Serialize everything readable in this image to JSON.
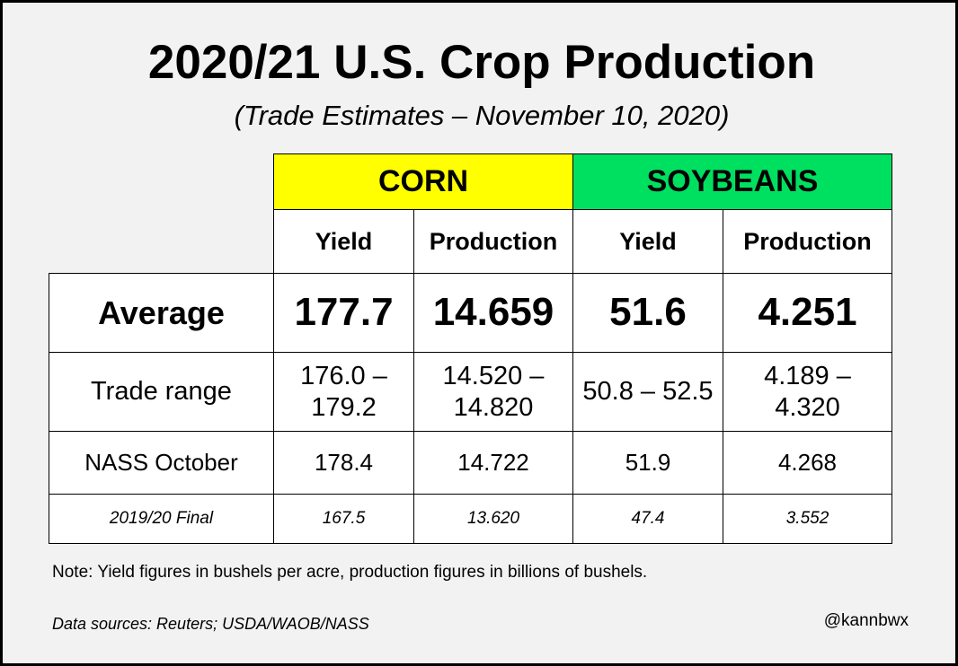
{
  "title": "2020/21 U.S. Crop Production",
  "subtitle": "(Trade Estimates – November 10, 2020)",
  "chart_data": {
    "type": "table",
    "groups": [
      {
        "name": "CORN",
        "color": "#ffff00",
        "columns": [
          "Yield",
          "Production"
        ]
      },
      {
        "name": "SOYBEANS",
        "color": "#00e060",
        "columns": [
          "Yield",
          "Production"
        ]
      }
    ],
    "rows": [
      {
        "label": "Average",
        "values": [
          "177.7",
          "14.659",
          "51.6",
          "4.251"
        ]
      },
      {
        "label": "Trade range",
        "values": [
          "176.0 – 179.2",
          "14.520 – 14.820",
          "50.8 – 52.5",
          "4.189 – 4.320"
        ]
      },
      {
        "label": "NASS October",
        "values": [
          "178.4",
          "14.722",
          "51.9",
          "4.268"
        ]
      },
      {
        "label": "2019/20 Final",
        "values": [
          "167.5",
          "13.620",
          "47.4",
          "3.552"
        ]
      }
    ]
  },
  "note": "Note: Yield figures in bushels per acre, production figures in billions of bushels.",
  "sources": "Data sources: Reuters; USDA/WAOB/NASS",
  "handle": "@kannbwx"
}
